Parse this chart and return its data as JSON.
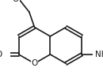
{
  "bg_color": "#ffffff",
  "bond_color": "#1a1a1a",
  "bond_width": 1.2,
  "atom_colors": {
    "O": "#1a1a1a",
    "N": "#1a1a1a",
    "C": "#1a1a1a"
  },
  "font_size": 7.5,
  "fig_width": 1.3,
  "fig_height": 1.0,
  "dpi": 100,
  "xlim": [
    -0.2,
    2.6
  ],
  "ylim": [
    -0.3,
    2.4
  ]
}
